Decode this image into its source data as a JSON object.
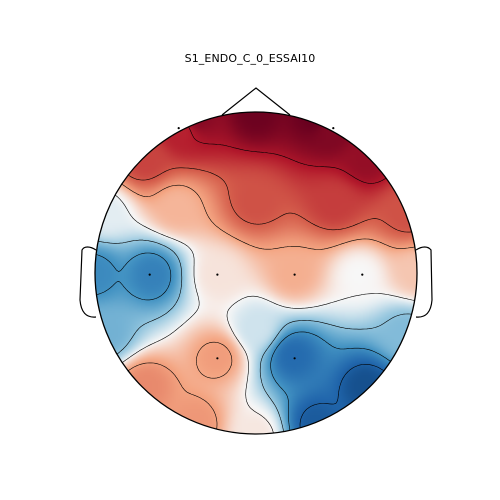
{
  "chart_data": {
    "type": "heatmap",
    "title": "S1_ENDO_C_0_ESSAI10",
    "colormap": "RdBu_r",
    "colors": {
      "strong_red": "#67001f",
      "red": "#b2182b",
      "light_red": "#f4a582",
      "white": "#f7f7f7",
      "light_blue": "#92c5de",
      "blue": "#2166ac",
      "strong_blue": "#053061",
      "outline": "#000000"
    },
    "value_range": [
      -1,
      1
    ],
    "contour_levels": [
      -0.75,
      -0.5,
      -0.25,
      0,
      0.25,
      0.5,
      0.75
    ],
    "sensors": [
      {
        "x": -0.48,
        "y": 0.9,
        "value": 0.72
      },
      {
        "x": 0.48,
        "y": 0.9,
        "value": 0.92
      },
      {
        "x": -0.66,
        "y": -0.01,
        "value": -0.6
      },
      {
        "x": -0.24,
        "y": -0.01,
        "value": 0.06
      },
      {
        "x": 0.24,
        "y": -0.01,
        "value": 0.22
      },
      {
        "x": 0.66,
        "y": -0.01,
        "value": 0.0
      },
      {
        "x": -0.24,
        "y": -0.53,
        "value": 0.28
      },
      {
        "x": 0.24,
        "y": -0.53,
        "value": -0.72
      }
    ]
  }
}
